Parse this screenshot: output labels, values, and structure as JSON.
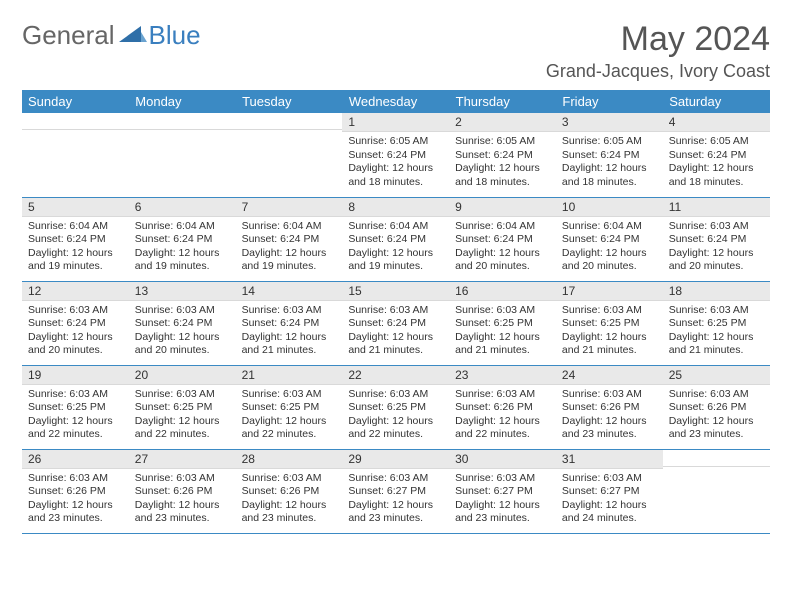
{
  "logo": {
    "text1": "General",
    "text2": "Blue"
  },
  "title": "May 2024",
  "location": "Grand-Jacques, Ivory Coast",
  "colors": {
    "header_bg": "#3b8ac4",
    "header_text": "#ffffff",
    "daynum_bg": "#e9e9e9",
    "border": "#3b8ac4",
    "logo_gray": "#666666",
    "logo_blue": "#3a7fbf"
  },
  "weekdays": [
    "Sunday",
    "Monday",
    "Tuesday",
    "Wednesday",
    "Thursday",
    "Friday",
    "Saturday"
  ],
  "weeks": [
    [
      {
        "day": "",
        "sunrise": "",
        "sunset": "",
        "daylight": ""
      },
      {
        "day": "",
        "sunrise": "",
        "sunset": "",
        "daylight": ""
      },
      {
        "day": "",
        "sunrise": "",
        "sunset": "",
        "daylight": ""
      },
      {
        "day": "1",
        "sunrise": "6:05 AM",
        "sunset": "6:24 PM",
        "daylight": "12 hours and 18 minutes."
      },
      {
        "day": "2",
        "sunrise": "6:05 AM",
        "sunset": "6:24 PM",
        "daylight": "12 hours and 18 minutes."
      },
      {
        "day": "3",
        "sunrise": "6:05 AM",
        "sunset": "6:24 PM",
        "daylight": "12 hours and 18 minutes."
      },
      {
        "day": "4",
        "sunrise": "6:05 AM",
        "sunset": "6:24 PM",
        "daylight": "12 hours and 18 minutes."
      }
    ],
    [
      {
        "day": "5",
        "sunrise": "6:04 AM",
        "sunset": "6:24 PM",
        "daylight": "12 hours and 19 minutes."
      },
      {
        "day": "6",
        "sunrise": "6:04 AM",
        "sunset": "6:24 PM",
        "daylight": "12 hours and 19 minutes."
      },
      {
        "day": "7",
        "sunrise": "6:04 AM",
        "sunset": "6:24 PM",
        "daylight": "12 hours and 19 minutes."
      },
      {
        "day": "8",
        "sunrise": "6:04 AM",
        "sunset": "6:24 PM",
        "daylight": "12 hours and 19 minutes."
      },
      {
        "day": "9",
        "sunrise": "6:04 AM",
        "sunset": "6:24 PM",
        "daylight": "12 hours and 20 minutes."
      },
      {
        "day": "10",
        "sunrise": "6:04 AM",
        "sunset": "6:24 PM",
        "daylight": "12 hours and 20 minutes."
      },
      {
        "day": "11",
        "sunrise": "6:03 AM",
        "sunset": "6:24 PM",
        "daylight": "12 hours and 20 minutes."
      }
    ],
    [
      {
        "day": "12",
        "sunrise": "6:03 AM",
        "sunset": "6:24 PM",
        "daylight": "12 hours and 20 minutes."
      },
      {
        "day": "13",
        "sunrise": "6:03 AM",
        "sunset": "6:24 PM",
        "daylight": "12 hours and 20 minutes."
      },
      {
        "day": "14",
        "sunrise": "6:03 AM",
        "sunset": "6:24 PM",
        "daylight": "12 hours and 21 minutes."
      },
      {
        "day": "15",
        "sunrise": "6:03 AM",
        "sunset": "6:24 PM",
        "daylight": "12 hours and 21 minutes."
      },
      {
        "day": "16",
        "sunrise": "6:03 AM",
        "sunset": "6:25 PM",
        "daylight": "12 hours and 21 minutes."
      },
      {
        "day": "17",
        "sunrise": "6:03 AM",
        "sunset": "6:25 PM",
        "daylight": "12 hours and 21 minutes."
      },
      {
        "day": "18",
        "sunrise": "6:03 AM",
        "sunset": "6:25 PM",
        "daylight": "12 hours and 21 minutes."
      }
    ],
    [
      {
        "day": "19",
        "sunrise": "6:03 AM",
        "sunset": "6:25 PM",
        "daylight": "12 hours and 22 minutes."
      },
      {
        "day": "20",
        "sunrise": "6:03 AM",
        "sunset": "6:25 PM",
        "daylight": "12 hours and 22 minutes."
      },
      {
        "day": "21",
        "sunrise": "6:03 AM",
        "sunset": "6:25 PM",
        "daylight": "12 hours and 22 minutes."
      },
      {
        "day": "22",
        "sunrise": "6:03 AM",
        "sunset": "6:25 PM",
        "daylight": "12 hours and 22 minutes."
      },
      {
        "day": "23",
        "sunrise": "6:03 AM",
        "sunset": "6:26 PM",
        "daylight": "12 hours and 22 minutes."
      },
      {
        "day": "24",
        "sunrise": "6:03 AM",
        "sunset": "6:26 PM",
        "daylight": "12 hours and 23 minutes."
      },
      {
        "day": "25",
        "sunrise": "6:03 AM",
        "sunset": "6:26 PM",
        "daylight": "12 hours and 23 minutes."
      }
    ],
    [
      {
        "day": "26",
        "sunrise": "6:03 AM",
        "sunset": "6:26 PM",
        "daylight": "12 hours and 23 minutes."
      },
      {
        "day": "27",
        "sunrise": "6:03 AM",
        "sunset": "6:26 PM",
        "daylight": "12 hours and 23 minutes."
      },
      {
        "day": "28",
        "sunrise": "6:03 AM",
        "sunset": "6:26 PM",
        "daylight": "12 hours and 23 minutes."
      },
      {
        "day": "29",
        "sunrise": "6:03 AM",
        "sunset": "6:27 PM",
        "daylight": "12 hours and 23 minutes."
      },
      {
        "day": "30",
        "sunrise": "6:03 AM",
        "sunset": "6:27 PM",
        "daylight": "12 hours and 23 minutes."
      },
      {
        "day": "31",
        "sunrise": "6:03 AM",
        "sunset": "6:27 PM",
        "daylight": "12 hours and 24 minutes."
      },
      {
        "day": "",
        "sunrise": "",
        "sunset": "",
        "daylight": ""
      }
    ]
  ]
}
